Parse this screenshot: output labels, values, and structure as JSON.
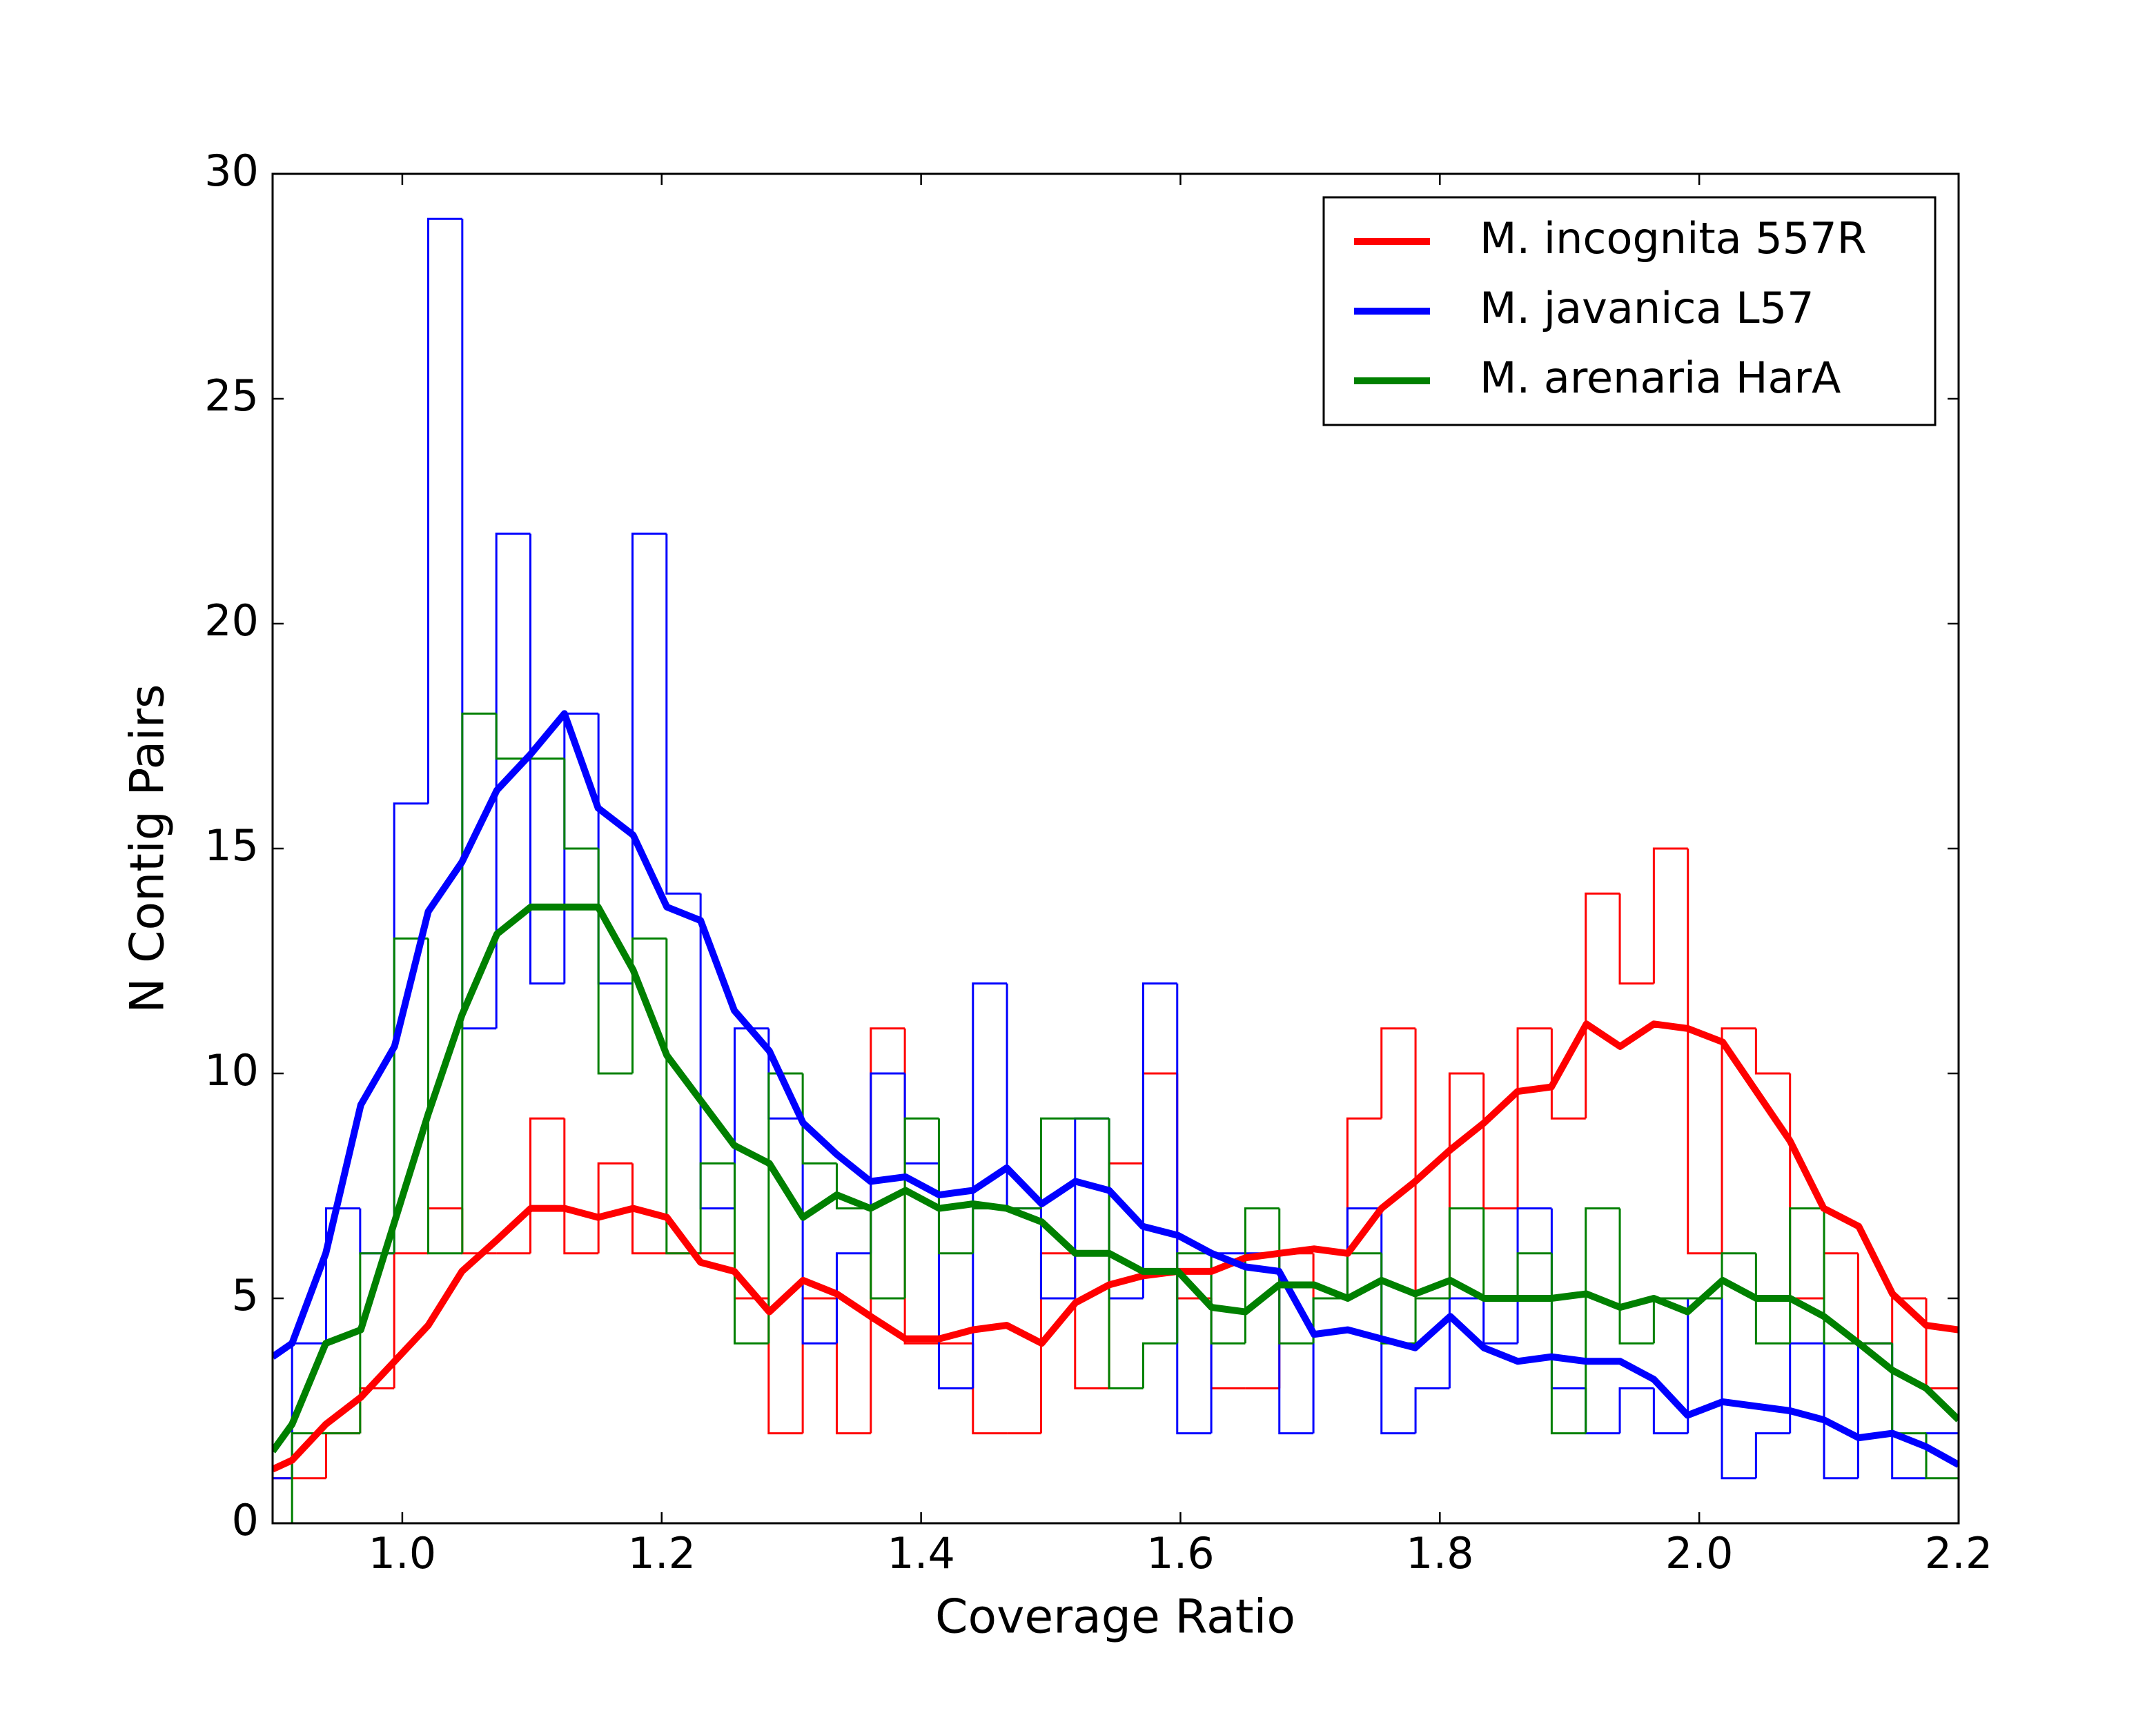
{
  "chart_data": {
    "type": "histogram",
    "xlabel": "Coverage Ratio",
    "ylabel": "N Contig Pairs",
    "xlim": [
      0.9,
      2.2
    ],
    "ylim": [
      0,
      30
    ],
    "xticks": [
      {
        "value": 1,
        "label": "1.0"
      },
      1.2,
      1.4,
      1.6,
      1.8,
      {
        "value": 2,
        "label": "2.0"
      },
      2.2
    ],
    "yticks": [
      0,
      5,
      10,
      15,
      20,
      25,
      30
    ],
    "legend": "upper right",
    "bins": [
      0.88875,
      0.915,
      0.94125,
      0.9675,
      0.99375,
      1.02,
      1.04625,
      1.0725,
      1.09875,
      1.125,
      1.15125,
      1.1775,
      1.20375,
      1.23,
      1.25625,
      1.2825,
      1.30875,
      1.335,
      1.36125,
      1.3875,
      1.41375,
      1.44,
      1.46625,
      1.4925,
      1.51875,
      1.545,
      1.57125,
      1.5975,
      1.62375,
      1.65,
      1.67625,
      1.7025,
      1.72875,
      1.755,
      1.78125,
      1.8075,
      1.83375,
      1.86,
      1.88625,
      1.9125,
      1.93875,
      1.965,
      1.99125,
      2.0175,
      2.04375,
      2.07,
      2.09625,
      2.1225,
      2.14875,
      2.175,
      2.20125
    ],
    "series": [
      {
        "color": "#ff0000",
        "values": [
          1,
          1,
          2,
          3,
          6,
          7,
          6,
          6,
          9,
          6,
          8,
          6,
          6,
          6,
          5,
          2,
          5,
          2,
          11,
          4,
          4,
          2,
          2,
          6,
          3,
          8,
          10,
          5,
          3,
          3,
          6,
          5,
          9,
          11,
          5,
          10,
          7,
          11,
          9,
          14,
          12,
          15,
          6,
          11,
          10,
          5,
          6,
          4,
          5,
          3
        ]
      },
      {
        "color": "#0000ff",
        "values": [
          1,
          4,
          7,
          6,
          16,
          29,
          11,
          22,
          12,
          18,
          12,
          22,
          14,
          7,
          11,
          9,
          4,
          6,
          10,
          8,
          3,
          12,
          7,
          5,
          9,
          5,
          12,
          2,
          6,
          6,
          2,
          5,
          7,
          2,
          3,
          5,
          4,
          7,
          3,
          2,
          3,
          2,
          5,
          1,
          2,
          4,
          1,
          4,
          1,
          2
        ]
      },
      {
        "color": "#008000",
        "values": [
          0,
          2,
          2,
          6,
          13,
          6,
          18,
          17,
          17,
          15,
          10,
          13,
          6,
          8,
          4,
          10,
          8,
          7,
          5,
          9,
          6,
          7,
          7,
          9,
          9,
          3,
          4,
          6,
          4,
          7,
          4,
          5,
          6,
          4,
          5,
          7,
          5,
          6,
          2,
          7,
          4,
          5,
          5,
          6,
          4,
          7,
          4,
          4,
          2,
          1
        ]
      }
    ],
    "lines": {
      "type": "line",
      "x": [
        0.9,
        0.915,
        0.941,
        0.968,
        0.994,
        1.02,
        1.046,
        1.073,
        1.099,
        1.125,
        1.151,
        1.178,
        1.204,
        1.23,
        1.256,
        1.283,
        1.309,
        1.335,
        1.361,
        1.388,
        1.414,
        1.44,
        1.466,
        1.493,
        1.519,
        1.545,
        1.571,
        1.598,
        1.624,
        1.65,
        1.676,
        1.703,
        1.729,
        1.755,
        1.781,
        1.808,
        1.834,
        1.86,
        1.886,
        1.913,
        1.939,
        1.965,
        1.991,
        2.018,
        2.044,
        2.07,
        2.096,
        2.123,
        2.149,
        2.175,
        2.2
      ],
      "series": [
        {
          "name": "M. incognita 557R",
          "color": "#ff0000",
          "values": [
            1.2,
            1.4,
            2.2,
            2.8,
            3.6,
            4.4,
            5.6,
            6.3,
            7.0,
            7.0,
            6.8,
            7.0,
            6.8,
            5.8,
            5.6,
            4.7,
            5.4,
            5.1,
            4.6,
            4.1,
            4.1,
            4.3,
            4.4,
            4.0,
            4.9,
            5.3,
            5.5,
            5.6,
            5.6,
            5.9,
            6.0,
            6.1,
            6.0,
            7.0,
            7.6,
            8.3,
            8.9,
            9.6,
            9.7,
            11.1,
            10.6,
            11.1,
            11.0,
            10.7,
            9.6,
            8.5,
            7.0,
            6.6,
            5.1,
            4.4,
            4.3
          ]
        },
        {
          "name": "M. javanica L57",
          "color": "#0000ff",
          "values": [
            3.7,
            4.0,
            6.0,
            9.3,
            10.6,
            13.6,
            14.7,
            16.3,
            17.1,
            18.0,
            15.9,
            15.3,
            13.7,
            13.4,
            11.4,
            10.5,
            8.9,
            8.2,
            7.6,
            7.7,
            7.3,
            7.4,
            7.9,
            7.1,
            7.6,
            7.4,
            6.6,
            6.4,
            6.0,
            5.7,
            5.6,
            4.2,
            4.3,
            4.1,
            3.9,
            4.6,
            3.9,
            3.6,
            3.7,
            3.6,
            3.6,
            3.2,
            2.4,
            2.7,
            2.6,
            2.5,
            2.3,
            1.9,
            2.0,
            1.7,
            1.3
          ]
        },
        {
          "name": "M. arenaria HarA",
          "color": "#008000",
          "values": [
            1.6,
            2.2,
            4.0,
            4.3,
            6.7,
            9.1,
            11.3,
            13.1,
            13.7,
            13.7,
            13.7,
            12.3,
            10.4,
            9.4,
            8.4,
            8.0,
            6.8,
            7.3,
            7.0,
            7.4,
            7.0,
            7.1,
            7.0,
            6.7,
            6.0,
            6.0,
            5.6,
            5.6,
            4.8,
            4.7,
            5.3,
            5.3,
            5.0,
            5.4,
            5.1,
            5.4,
            5.0,
            5.0,
            5.0,
            5.1,
            4.8,
            5.0,
            4.7,
            5.4,
            5.0,
            5.0,
            4.6,
            4.0,
            3.4,
            3.0,
            2.3
          ]
        }
      ]
    }
  }
}
